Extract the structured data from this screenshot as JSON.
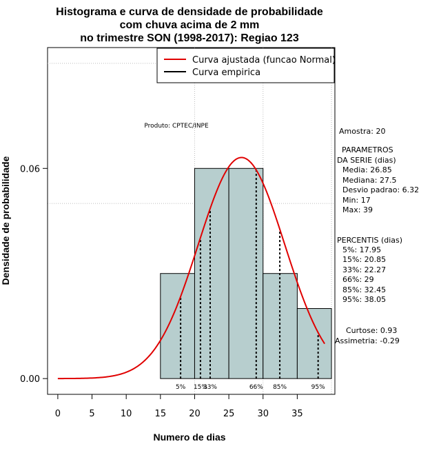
{
  "chart_data": {
    "type": "histogram",
    "title_lines": [
      "Histograma e curva de densidade de probabilidade",
      "com chuva acima de 2 mm",
      "no trimestre SON (1998-2017): Regiao 123"
    ],
    "xlabel": "Numero de dias",
    "ylabel": "Densidade de probabilidade",
    "xlim": [
      -1.5,
      40.5
    ],
    "ylim": [
      -0.0045,
      0.0945
    ],
    "x_ticks": [
      0,
      5,
      10,
      15,
      20,
      25,
      30,
      35
    ],
    "x_tick_labels": [
      "0",
      "5",
      "10",
      "15",
      "20",
      "25",
      "30",
      "35"
    ],
    "y_ticks": [
      0.0,
      0.06
    ],
    "y_tick_labels": [
      "0.00",
      "0.06"
    ],
    "gridlines_y": [
      0.05,
      0.09
    ],
    "bars": [
      {
        "x0": 15,
        "x1": 20,
        "density": 0.03
      },
      {
        "x0": 20,
        "x1": 25,
        "density": 0.06
      },
      {
        "x0": 25,
        "x1": 30,
        "density": 0.06
      },
      {
        "x0": 30,
        "x1": 35,
        "density": 0.03
      },
      {
        "x0": 35,
        "x1": 40,
        "density": 0.02
      }
    ],
    "bar_color": "#b7cece",
    "normal_fit": {
      "mean": 26.85,
      "sd": 6.32,
      "x_from": 0,
      "x_to": 39,
      "color": "#e00000"
    },
    "percentiles": [
      {
        "label": "5%",
        "value": 17.95
      },
      {
        "label": "15%",
        "value": 20.85
      },
      {
        "label": "33%",
        "value": 22.27
      },
      {
        "label": "66%",
        "value": 29
      },
      {
        "label": "85%",
        "value": 32.45
      },
      {
        "label": "95%",
        "value": 38.05
      }
    ],
    "legend": {
      "position": "top-right",
      "entries": [
        {
          "label": "Curva ajustada (funcao Normal)",
          "color": "#e00000"
        },
        {
          "label": "Curva empirica",
          "color": "#000000"
        }
      ]
    },
    "product_label": "Produto: CPTEC/INPE"
  },
  "stats": {
    "amostra": "Amostra: 20",
    "param_title_1": "PARAMETROS",
    "param_title_2": "DA SERIE (dias)",
    "media": "Media: 26.85",
    "mediana": "Mediana: 27.5",
    "desvio": "Desvio padrao: 6.32",
    "min": "Min: 17",
    "max": "Max: 39",
    "percentis_title": "PERCENTIS (dias)",
    "p5": "5%: 17.95",
    "p15": "15%: 20.85",
    "p33": "33%: 22.27",
    "p66": "66%: 29",
    "p85": "85%: 32.45",
    "p95": "95%: 38.05",
    "curtose": "Curtose: 0.93",
    "assimetria": "Assimetria: -0.29"
  }
}
